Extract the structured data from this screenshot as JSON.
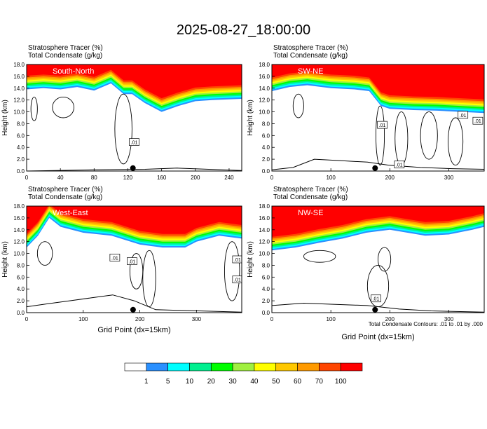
{
  "title": "2025-08-27_18:00:00",
  "colors": {
    "stratosphere_red": "#ff0000",
    "orange_red": "#ff4500",
    "orange": "#ff9a00",
    "gold": "#ffc800",
    "yellow": "#ffff00",
    "yellow_green": "#a0f040",
    "green": "#00ff00",
    "spring_green": "#00f090",
    "cyan": "#00ffff",
    "blue": "#2a90ff",
    "white": "#ffffff"
  },
  "legend": {
    "labels": [
      "1",
      "5",
      "10",
      "20",
      "30",
      "40",
      "50",
      "60",
      "70",
      "100"
    ],
    "colors": [
      "#ffffff",
      "#2a90ff",
      "#00ffff",
      "#00f090",
      "#00ff00",
      "#a0f040",
      "#ffff00",
      "#ffc800",
      "#ff9a00",
      "#ff4500",
      "#ff0000"
    ]
  },
  "contour_note": "Total Condensate Contours: .01 to .01 by .000",
  "chart_data": [
    {
      "type": "heatmap",
      "title": "South-North",
      "subtitle_lines": [
        "Stratosphere Tracer   (%)",
        "Total Condensate   (g/kg)"
      ],
      "ylabel": "Height (km)",
      "xlabel": "",
      "ylim": [
        0,
        18
      ],
      "xlim": [
        0,
        255
      ],
      "xticks": [
        "0",
        "40",
        "80",
        "120",
        "160",
        "200",
        "240"
      ],
      "xtick_values": [
        0,
        40,
        80,
        120,
        160,
        200,
        240
      ],
      "yticks": [
        "0.0",
        "2.0",
        "4.0",
        "6.0",
        "8.0",
        "10.0",
        "12.0",
        "14.0",
        "16.0",
        "18.0"
      ],
      "tropopause_x": [
        0,
        20,
        40,
        60,
        80,
        100,
        115,
        125,
        140,
        160,
        180,
        200,
        220,
        255
      ],
      "tropopause_km": [
        13.8,
        14.0,
        13.8,
        14.2,
        13.6,
        14.8,
        13.0,
        13.0,
        11.5,
        10.0,
        11.0,
        11.8,
        12.0,
        12.2
      ],
      "contour_labels": [
        ".01"
      ],
      "marker_x": 126
    },
    {
      "type": "heatmap",
      "title": "SW-NE",
      "subtitle_lines": [
        "Stratosphere Tracer   (%)",
        "Total Condensate   (g/kg)"
      ],
      "ylabel": "Height (km)",
      "xlabel": "",
      "ylim": [
        0,
        18
      ],
      "xlim": [
        0,
        360
      ],
      "xticks": [
        "0",
        "100",
        "200",
        "300"
      ],
      "xtick_values": [
        0,
        100,
        200,
        300
      ],
      "yticks": [
        "0.0",
        "2.0",
        "4.0",
        "6.0",
        "8.0",
        "10.0",
        "12.0",
        "14.0",
        "16.0",
        "18.0"
      ],
      "tropopause_x": [
        0,
        30,
        60,
        100,
        140,
        165,
        185,
        200,
        240,
        280,
        320,
        360
      ],
      "tropopause_km": [
        13.5,
        14.2,
        14.5,
        14.0,
        13.8,
        13.5,
        11.0,
        10.5,
        10.3,
        10.2,
        10.0,
        9.8
      ],
      "contour_labels": [
        ".01",
        ".01",
        ".01",
        ".01"
      ],
      "marker_x": 175
    },
    {
      "type": "heatmap",
      "title": "West-East",
      "subtitle_lines": [
        "Stratosphere Tracer   (%)",
        "Total Condensate   (g/kg)"
      ],
      "ylabel": "Height (km)",
      "xlabel": "Grid Point (dx=15km)",
      "ylim": [
        0,
        18
      ],
      "xlim": [
        0,
        380
      ],
      "xticks": [
        "0",
        "100",
        "200",
        "300"
      ],
      "xtick_values": [
        0,
        100,
        200,
        300
      ],
      "yticks": [
        "0.0",
        "2.0",
        "4.0",
        "6.0",
        "8.0",
        "10.0",
        "12.0",
        "14.0",
        "16.0",
        "18.0"
      ],
      "tropopause_x": [
        0,
        20,
        40,
        60,
        100,
        150,
        200,
        240,
        280,
        300,
        340,
        380
      ],
      "tropopause_km": [
        11.0,
        13.0,
        16.0,
        14.5,
        13.5,
        13.0,
        11.5,
        11.0,
        11.0,
        12.0,
        13.0,
        12.5
      ],
      "contour_labels": [
        ".01",
        ".01",
        ".01",
        ".01"
      ],
      "marker_x": 188
    },
    {
      "type": "heatmap",
      "title": "NW-SE",
      "subtitle_lines": [
        "Stratosphere Tracer   (%)",
        "Total Condensate   (g/kg)"
      ],
      "ylabel": "Height (km)",
      "xlabel": "Grid Point (dx=15km)",
      "ylim": [
        0,
        18
      ],
      "xlim": [
        0,
        360
      ],
      "xticks": [
        "0",
        "100",
        "200",
        "300"
      ],
      "xtick_values": [
        0,
        100,
        200,
        300
      ],
      "yticks": [
        "0.0",
        "2.0",
        "4.0",
        "6.0",
        "8.0",
        "10.0",
        "12.0",
        "14.0",
        "16.0",
        "18.0"
      ],
      "tropopause_x": [
        0,
        40,
        80,
        120,
        160,
        200,
        230,
        260,
        300,
        340,
        360
      ],
      "tropopause_km": [
        10.5,
        11.0,
        11.8,
        12.5,
        13.5,
        14.0,
        13.5,
        13.0,
        13.2,
        14.0,
        14.5
      ],
      "contour_labels": [
        ".01"
      ],
      "marker_x": 175
    }
  ]
}
